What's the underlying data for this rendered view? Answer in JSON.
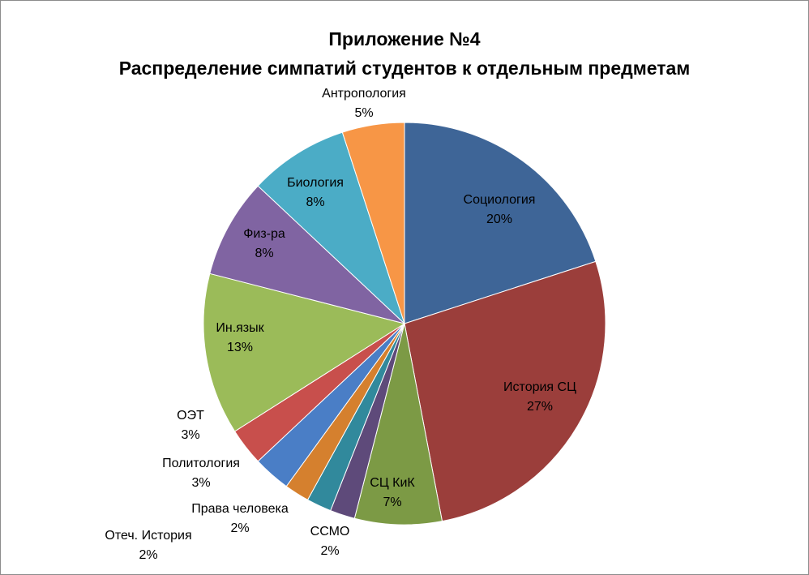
{
  "chart_data": {
    "type": "pie",
    "title": "Приложение №4",
    "subtitle": "Распределение симпатий студентов к отдельным предметам",
    "slices": [
      {
        "label": "Социология",
        "value": 20,
        "pct": "20%",
        "color": "#3E6597"
      },
      {
        "label": "История СЦ",
        "value": 27,
        "pct": "27%",
        "color": "#9B3E3B"
      },
      {
        "label": "СЦ КиК",
        "value": 7,
        "pct": "7%",
        "color": "#7C9A45"
      },
      {
        "label": "ССМО",
        "value": 2,
        "pct": "2%",
        "color": "#5E4A7A"
      },
      {
        "label": "Отеч. История",
        "value": 2,
        "pct": "2%",
        "color": "#31899C"
      },
      {
        "label": "Права человека",
        "value": 2,
        "pct": "2%",
        "color": "#D5802E"
      },
      {
        "label": "Политология",
        "value": 3,
        "pct": "3%",
        "color": "#4A7EC6"
      },
      {
        "label": "ОЭТ",
        "value": 3,
        "pct": "3%",
        "color": "#C84F4C"
      },
      {
        "label": "Ин.язык",
        "value": 13,
        "pct": "13%",
        "color": "#9BBB59"
      },
      {
        "label": "Физ-ра",
        "value": 8,
        "pct": "8%",
        "color": "#8064A2"
      },
      {
        "label": "Биология",
        "value": 8,
        "pct": "8%",
        "color": "#4BACC6"
      },
      {
        "label": "Антропология",
        "value": 5,
        "pct": "5%",
        "color": "#F79646"
      }
    ]
  }
}
